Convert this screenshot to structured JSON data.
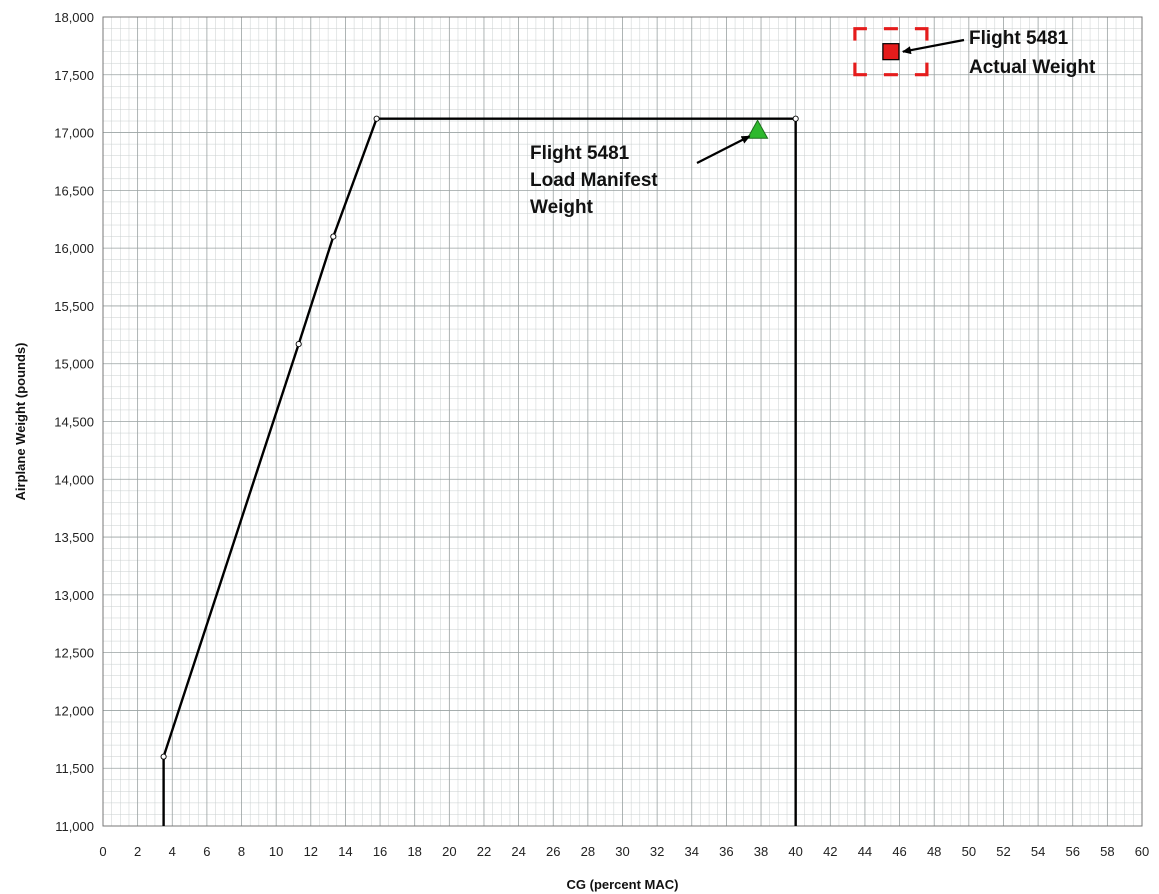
{
  "chart_data": {
    "type": "scatter",
    "xlabel": "CG (percent MAC)",
    "ylabel": "Airplane Weight (pounds)",
    "xlim": [
      0,
      60
    ],
    "ylim": [
      11000,
      18000
    ],
    "x_ticks": [
      0,
      2,
      4,
      6,
      8,
      10,
      12,
      14,
      16,
      18,
      20,
      22,
      24,
      26,
      28,
      30,
      32,
      34,
      36,
      38,
      40,
      42,
      44,
      46,
      48,
      50,
      52,
      54,
      56,
      58,
      60
    ],
    "y_ticks": [
      {
        "value": 11000,
        "label": "11,000"
      },
      {
        "value": 11500,
        "label": "11,500"
      },
      {
        "value": 12000,
        "label": "12,000"
      },
      {
        "value": 12500,
        "label": "12,500"
      },
      {
        "value": 13000,
        "label": "13,000"
      },
      {
        "value": 13500,
        "label": "13,500"
      },
      {
        "value": 14000,
        "label": "14,000"
      },
      {
        "value": 14500,
        "label": "14,500"
      },
      {
        "value": 15000,
        "label": "15,000"
      },
      {
        "value": 15500,
        "label": "15,500"
      },
      {
        "value": 16000,
        "label": "16,000"
      },
      {
        "value": 16500,
        "label": "16,500"
      },
      {
        "value": 17000,
        "label": "17,000"
      },
      {
        "value": 17500,
        "label": "17,500"
      },
      {
        "value": 18000,
        "label": "18,000"
      }
    ],
    "grid": true,
    "envelope": {
      "points": [
        {
          "x": 3.5,
          "y": 11000
        },
        {
          "x": 3.5,
          "y": 11600
        },
        {
          "x": 11.3,
          "y": 15170
        },
        {
          "x": 13.3,
          "y": 16100
        },
        {
          "x": 15.8,
          "y": 17120
        },
        {
          "x": 40.0,
          "y": 17120
        },
        {
          "x": 40.0,
          "y": 11000
        }
      ],
      "color": "#000000"
    },
    "markers": [
      {
        "name": "load-manifest-weight",
        "shape": "triangle",
        "x": 37.8,
        "y": 17020,
        "color": "#2db82d"
      },
      {
        "name": "actual-weight",
        "shape": "square",
        "x": 45.5,
        "y": 17700,
        "color": "#e51c1c"
      }
    ],
    "annotations": [
      {
        "name": "load-manifest-label",
        "lines": [
          "Flight  5481",
          "Load Manifest",
          "Weight"
        ]
      },
      {
        "name": "actual-weight-label",
        "lines": [
          "Flight  5481",
          "Actual Weight"
        ]
      }
    ]
  }
}
